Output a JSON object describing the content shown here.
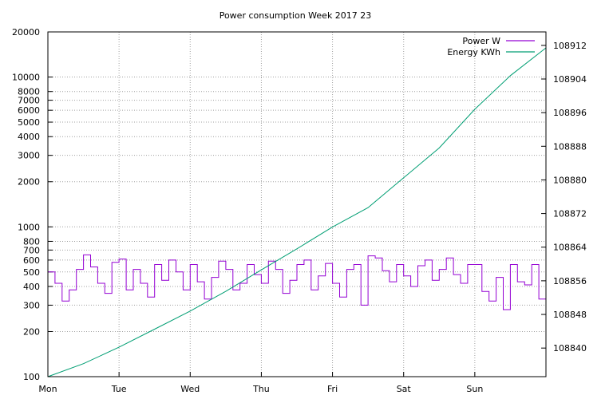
{
  "chart_data": {
    "type": "line",
    "title": "Power consumption Week 2017 23",
    "xlabel": "",
    "ylabel": "",
    "y2label": "",
    "x_tick_labels": [
      "Mon",
      "Tue",
      "Wed",
      "Thu",
      "Fri",
      "Sat",
      "Sun"
    ],
    "x_range_days": [
      0,
      7
    ],
    "y_scale": "log",
    "ylim": [
      100,
      20000
    ],
    "y_tick_labels": [
      "100",
      "200",
      "300",
      "400",
      "500",
      "600",
      "700",
      "800",
      "1000",
      "2000",
      "3000",
      "4000",
      "5000",
      "6000",
      "7000",
      "8000",
      "10000",
      "20000"
    ],
    "y2_scale": "linear",
    "y2lim": [
      108833.2,
      108915.2
    ],
    "y2_tick_labels": [
      "108840",
      "108848",
      "108856",
      "108864",
      "108872",
      "108880",
      "108888",
      "108896",
      "108904",
      "108912"
    ],
    "grid": true,
    "legend_position": "top-right",
    "series": [
      {
        "name": "Power W",
        "axis": "y",
        "color": "#9400d3",
        "x": [
          0.0,
          0.1,
          0.2,
          0.3,
          0.4,
          0.5,
          0.6,
          0.7,
          0.8,
          0.9,
          1.0,
          1.1,
          1.2,
          1.3,
          1.4,
          1.5,
          1.6,
          1.7,
          1.8,
          1.9,
          2.0,
          2.1,
          2.2,
          2.3,
          2.4,
          2.5,
          2.6,
          2.7,
          2.8,
          2.9,
          3.0,
          3.1,
          3.2,
          3.3,
          3.4,
          3.5,
          3.6,
          3.7,
          3.8,
          3.9,
          4.0,
          4.1,
          4.2,
          4.3,
          4.4,
          4.5,
          4.6,
          4.7,
          4.8,
          4.9,
          5.0,
          5.1,
          5.2,
          5.3,
          5.4,
          5.5,
          5.6,
          5.7,
          5.8,
          5.9,
          6.0,
          6.1,
          6.2,
          6.3,
          6.4,
          6.5,
          6.6,
          6.7,
          6.8,
          6.9,
          7.0
        ],
        "y": [
          500,
          420,
          320,
          380,
          520,
          650,
          540,
          420,
          360,
          580,
          610,
          380,
          520,
          420,
          340,
          560,
          440,
          600,
          500,
          380,
          560,
          430,
          330,
          460,
          590,
          520,
          380,
          420,
          560,
          480,
          420,
          590,
          520,
          360,
          440,
          560,
          600,
          380,
          470,
          570,
          420,
          340,
          520,
          560,
          300,
          640,
          620,
          510,
          430,
          560,
          470,
          400,
          550,
          600,
          440,
          520,
          620,
          480,
          420,
          560,
          560,
          370,
          320,
          460,
          280,
          560,
          430,
          410,
          560,
          330,
          460
        ]
      },
      {
        "name": "Energy KWh",
        "axis": "y2",
        "color": "#009e73",
        "x": [
          0,
          0.5,
          1,
          1.5,
          2,
          2.5,
          3,
          3.5,
          4,
          4.5,
          5,
          5.5,
          6,
          6.5,
          7
        ],
        "y": [
          108833.2,
          108836.3,
          108840.2,
          108844.5,
          108848.8,
          108853.5,
          108858.6,
          108863.6,
          108868.8,
          108873.4,
          108880.5,
          108887.6,
          108896.8,
          108904.8,
          108911.4
        ]
      }
    ]
  }
}
